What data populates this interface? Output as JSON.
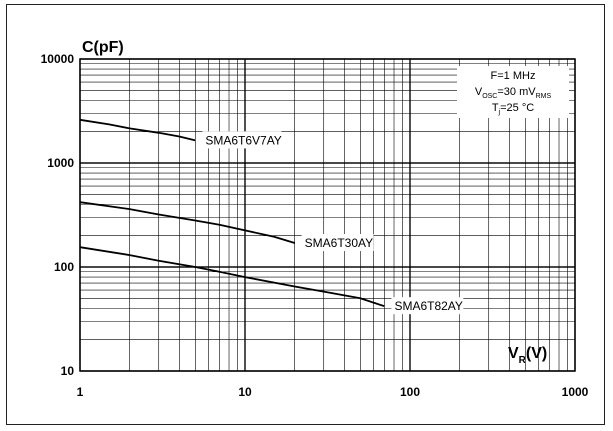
{
  "chart_data": {
    "type": "line",
    "title": "",
    "ylabel": "C(pF)",
    "xlabel_main": "V",
    "xlabel_sub": "R",
    "xlabel_unit": "(V)",
    "x_scale": "log",
    "y_scale": "log",
    "xlim": [
      1,
      1000
    ],
    "ylim": [
      10,
      10000
    ],
    "grid": true,
    "x_ticks": [
      {
        "value": 1,
        "label": "1"
      },
      {
        "value": 10,
        "label": "10"
      },
      {
        "value": 100,
        "label": "100"
      },
      {
        "value": 1000,
        "label": "1000"
      }
    ],
    "y_ticks": [
      {
        "value": 10,
        "label": "10"
      },
      {
        "value": 100,
        "label": "100"
      },
      {
        "value": 1000,
        "label": "1000"
      },
      {
        "value": 10000,
        "label": "10000"
      }
    ],
    "annotation": {
      "line1": "F=1 MHz",
      "line2_main": "V",
      "line2_sub": "OSC",
      "line2_mid": "=30 mV",
      "line2_sub2": "RMS",
      "line3_main": "T",
      "line3_sub": "j",
      "line3_rest": "=25 °C"
    },
    "series": [
      {
        "name": "SMA6T6V7AY",
        "x": [
          1,
          1.5,
          2,
          3,
          4,
          5
        ],
        "y": [
          2600,
          2350,
          2150,
          1950,
          1800,
          1650
        ]
      },
      {
        "name": "SMA6T30AY",
        "x": [
          1,
          2,
          3,
          5,
          7,
          10,
          15,
          20
        ],
        "y": [
          420,
          360,
          320,
          280,
          255,
          225,
          195,
          170
        ]
      },
      {
        "name": "SMA6T82AY",
        "x": [
          1,
          2,
          3,
          5,
          7,
          10,
          20,
          30,
          50,
          70
        ],
        "y": [
          155,
          130,
          115,
          100,
          90,
          80,
          65,
          58,
          50,
          42
        ]
      }
    ]
  }
}
